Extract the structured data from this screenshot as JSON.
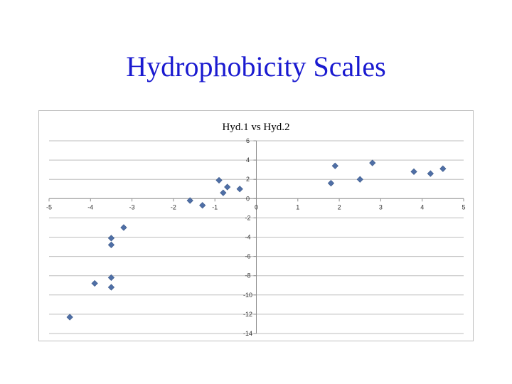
{
  "slide": {
    "title": "Hydrophobicity Scales"
  },
  "chart_data": {
    "type": "scatter",
    "title": "Hyd.1 vs Hyd.2",
    "xlabel": "",
    "ylabel": "",
    "xlim": [
      -5,
      5
    ],
    "ylim": [
      -14,
      6
    ],
    "x_ticks": [
      -5,
      -4,
      -3,
      -2,
      -1,
      0,
      1,
      2,
      3,
      4,
      5
    ],
    "y_ticks": [
      6,
      4,
      2,
      0,
      -2,
      -4,
      -6,
      -8,
      -10,
      -12,
      -14
    ],
    "grid": true,
    "legend": "none",
    "marker_color": "#4f6fa6",
    "points": [
      {
        "x": -4.5,
        "y": -12.3
      },
      {
        "x": -3.9,
        "y": -8.8
      },
      {
        "x": -3.5,
        "y": -8.2
      },
      {
        "x": -3.5,
        "y": -9.2
      },
      {
        "x": -3.5,
        "y": -4.1
      },
      {
        "x": -3.5,
        "y": -4.8
      },
      {
        "x": -3.2,
        "y": -3.0
      },
      {
        "x": -1.6,
        "y": -0.2
      },
      {
        "x": -1.3,
        "y": -0.7
      },
      {
        "x": -0.9,
        "y": 1.9
      },
      {
        "x": -0.8,
        "y": 0.6
      },
      {
        "x": -0.7,
        "y": 1.2
      },
      {
        "x": -0.4,
        "y": 1.0
      },
      {
        "x": 1.8,
        "y": 1.6
      },
      {
        "x": 1.9,
        "y": 3.4
      },
      {
        "x": 2.5,
        "y": 2.0
      },
      {
        "x": 2.8,
        "y": 3.7
      },
      {
        "x": 3.8,
        "y": 2.8
      },
      {
        "x": 4.2,
        "y": 2.6
      },
      {
        "x": 4.5,
        "y": 3.1
      }
    ]
  }
}
